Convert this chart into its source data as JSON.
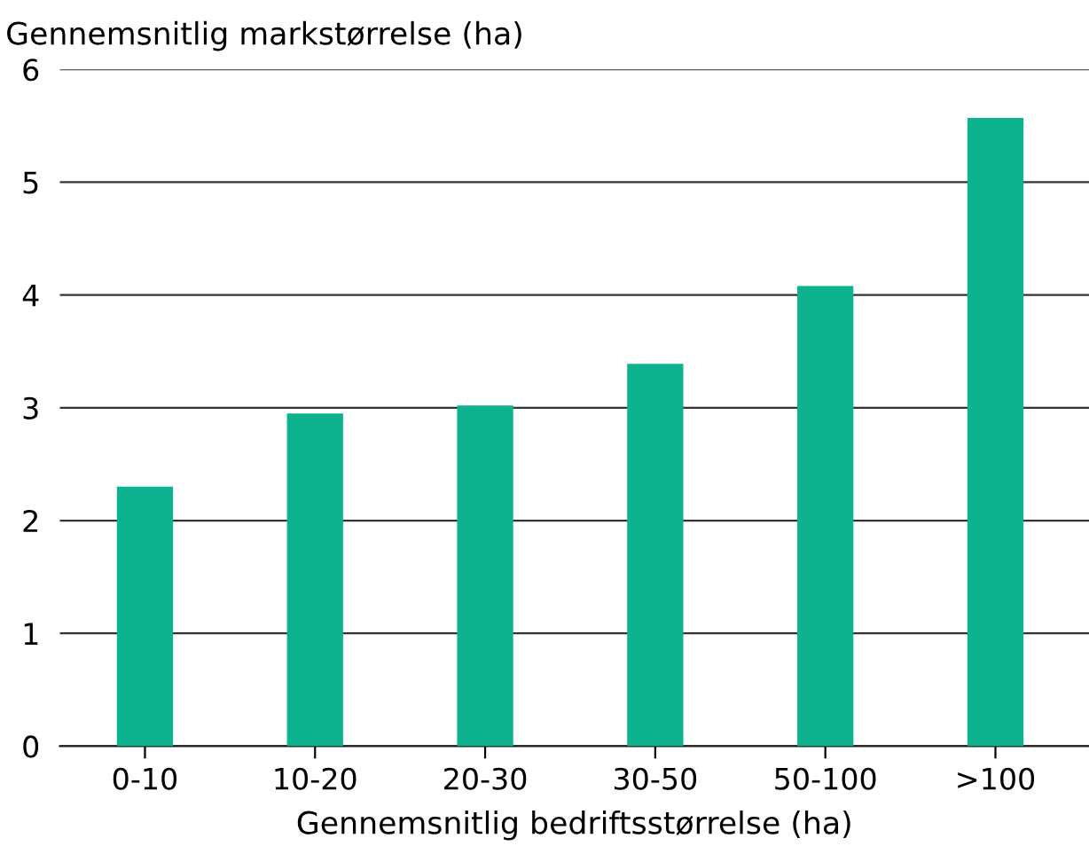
{
  "chart_data": {
    "type": "bar",
    "ylabel": "Gennemsnitlig markstørrelse (ha)",
    "xlabel": "Gennemsnitlig bedriftsstørrelse (ha)",
    "categories": [
      "0-10",
      "10-20",
      "20-30",
      "30-50",
      "50-100",
      ">100"
    ],
    "values": [
      2.3,
      2.95,
      3.02,
      3.39,
      4.08,
      5.57
    ],
    "color": "#0db38f",
    "ylim": [
      0,
      6
    ],
    "yticks": [
      0,
      1,
      2,
      3,
      4,
      5,
      6
    ],
    "grid": "y"
  }
}
